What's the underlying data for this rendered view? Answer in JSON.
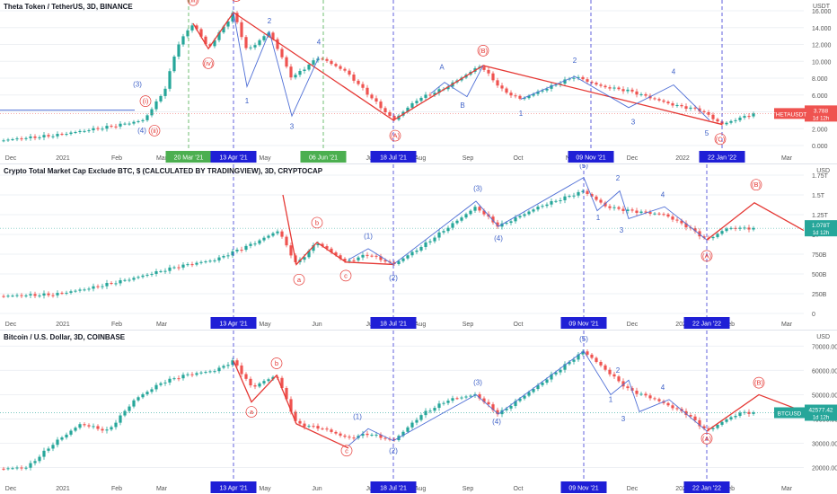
{
  "colors": {
    "up": "#26a69a",
    "down": "#ef5350",
    "wave_red": "#e53935",
    "wave_blue": "#4f6fd6",
    "grid": "#eef0f4",
    "date_vline": "#3a3ad6",
    "green_vline": "#4caf50",
    "price_tag_theta": "#ef5350",
    "price_tag_other": "#26a69a",
    "text_red": "#e53935",
    "text_blue": "#3f62c8"
  },
  "panels": [
    {
      "title": "Theta Token / TetherUS, 3D, BINANCE",
      "unit": "USDT",
      "price_label": "THETAUSDT",
      "price_value": "3.788",
      "price_sub": "1d 12h",
      "ticks": [
        "16.000",
        "14.000",
        "12.000",
        "10.000",
        "8.000",
        "6.000",
        "4.000",
        "2.000",
        "0.000"
      ],
      "months": [
        "Dec",
        "2021",
        "Feb",
        "Mar",
        "Apr",
        "May",
        "Jun",
        "Jul",
        "Aug",
        "Sep",
        "Oct",
        "Nov",
        "Dec",
        "2022",
        "Feb",
        "Mar"
      ],
      "date_labels": [
        "20 Mar '21",
        "13 Apr '21",
        "06 Jun '21",
        "18 Jul '21",
        "09 Nov '21",
        "22 Jan '22"
      ],
      "wave_labels_red": [
        "(iii)",
        "(5)",
        "(iv)",
        "(ii)",
        "(i)",
        "(A)",
        "(B)",
        "(C)",
        "(5)"
      ],
      "wave_labels_blue": [
        "(3)",
        "(4)",
        "1",
        "2",
        "3",
        "4",
        "5",
        "A",
        "B",
        "1",
        "2",
        "3",
        "4",
        "5"
      ]
    },
    {
      "title": "Crypto Total Market Cap Exclude BTC, $ (CALCULATED BY TRADINGVIEW), 3D, CRYPTOCAP",
      "unit": "USD",
      "price_label": "1.078T",
      "price_value": "1.078T",
      "price_sub": "1d 12h",
      "ticks": [
        "1.75T",
        "1.5T",
        "1.25T",
        "1T",
        "750B",
        "500B",
        "250B",
        "0"
      ],
      "months": [
        "Dec",
        "2021",
        "Feb",
        "Mar",
        "Apr",
        "May",
        "Jun",
        "Jul",
        "Aug",
        "Sep",
        "Oct",
        "Nov",
        "Dec",
        "2022",
        "Feb",
        "Mar"
      ],
      "date_labels": [
        "13 Apr '21",
        "18 Jul '21",
        "09 Nov '21",
        "22 Jan '22"
      ],
      "wave_labels_red": [
        "a",
        "b",
        "c",
        "(A)",
        "(B)"
      ],
      "wave_labels_blue": [
        "(1)",
        "(2)",
        "(3)",
        "(4)",
        "(5)",
        "1",
        "2",
        "3",
        "4"
      ]
    },
    {
      "title": "Bitcoin / U.S. Dollar, 3D, COINBASE",
      "unit": "USD",
      "price_label": "BTCUSD",
      "price_value": "42577.42",
      "price_sub": "1d 12h",
      "ticks": [
        "70000.00",
        "60000.00",
        "50000.00",
        "40000.00",
        "30000.00",
        "20000.00"
      ],
      "months": [
        "Dec",
        "2021",
        "Feb",
        "Mar",
        "Apr",
        "May",
        "Jun",
        "Jul",
        "Aug",
        "Sep",
        "Oct",
        "Nov",
        "Dec",
        "2022",
        "Feb",
        "Mar"
      ],
      "date_labels": [
        "13 Apr '21",
        "18 Jul '21",
        "09 Nov '21",
        "22 Jan '22"
      ],
      "wave_labels_red": [
        "a",
        "b",
        "c",
        "(A)",
        "(B)"
      ],
      "wave_labels_blue": [
        "(1)",
        "(2)",
        "(3)",
        "(4)",
        "(5)",
        "1",
        "2",
        "3",
        "4"
      ]
    }
  ],
  "chart_data": [
    {
      "type": "line",
      "title": "Theta Token / TetherUS, 3D, BINANCE",
      "ylabel": "USDT",
      "ylim": [
        0,
        16
      ],
      "grid": true,
      "x": [
        "Dec 2020",
        "Jan 2021",
        "Feb 2021",
        "Mar 2021",
        "20 Mar 2021",
        "Apr 2021",
        "13 Apr 2021",
        "May 2021",
        "Jun 2021",
        "06 Jun 2021",
        "Jul 2021",
        "18 Jul 2021",
        "Aug 2021",
        "Sep 2021",
        "Oct 2021",
        "Nov 2021",
        "09 Nov 2021",
        "Dec 2021",
        "Jan 2022",
        "22 Jan 2022",
        "Feb 2022"
      ],
      "series": [
        {
          "name": "THETAUSDT",
          "values": [
            0.6,
            1.2,
            2.2,
            3.0,
            14.5,
            11.5,
            15.8,
            11.0,
            8.0,
            10.5,
            6.5,
            3.0,
            5.0,
            9.5,
            6.0,
            7.0,
            8.2,
            6.5,
            4.5,
            2.5,
            3.8
          ]
        }
      ],
      "last": 3.788
    },
    {
      "type": "line",
      "title": "Crypto Total Market Cap Exclude BTC, $ (CALCULATED BY TRADINGVIEW), 3D, CRYPTOCAP",
      "ylabel": "USD",
      "ylim": [
        0,
        1750000000000
      ],
      "grid": true,
      "x": [
        "Dec 2020",
        "Jan 2021",
        "Feb 2021",
        "Mar 2021",
        "Apr 2021",
        "13 Apr 2021",
        "May 2021",
        "Jun 2021",
        "Jul 2021",
        "18 Jul 2021",
        "Aug 2021",
        "Sep 2021",
        "Oct 2021",
        "Nov 2021",
        "09 Nov 2021",
        "Dec 2021",
        "Jan 2022",
        "22 Jan 2022",
        "Feb 2022"
      ],
      "series": [
        {
          "name": "Crypto Total Market Cap Exclude BTC",
          "values": [
            220000000000,
            260000000000,
            420000000000,
            580000000000,
            760000000000,
            1020000000000,
            1400000000000,
            1000000000000,
            900000000000,
            800000000000,
            1100000000000,
            1500000000000,
            1300000000000,
            1550000000000,
            1720000000000,
            1350000000000,
            1200000000000,
            850000000000,
            1078000000000
          ]
        }
      ],
      "last": 1078000000000
    },
    {
      "type": "line",
      "title": "Bitcoin / U.S. Dollar, 3D, COINBASE",
      "ylabel": "USD",
      "ylim": [
        15000,
        72000
      ],
      "grid": true,
      "x": [
        "Dec 2020",
        "Jan 2021",
        "Feb 2021",
        "Mar 2021",
        "Apr 2021",
        "13 Apr 2021",
        "May 2021",
        "Jun 2021",
        "Jul 2021",
        "18 Jul 2021",
        "Aug 2021",
        "Sep 2021",
        "Oct 2021",
        "Nov 2021",
        "09 Nov 2021",
        "Dec 2021",
        "Jan 2022",
        "22 Jan 2022",
        "Feb 2022"
      ],
      "series": [
        {
          "name": "BTCUSD",
          "values": [
            19000,
            33000,
            45000,
            57000,
            59000,
            64000,
            49000,
            35000,
            33000,
            31000,
            45000,
            50000,
            55000,
            63000,
            68000,
            49000,
            43000,
            35000,
            42577.42
          ]
        }
      ],
      "last": 42577.42
    }
  ]
}
